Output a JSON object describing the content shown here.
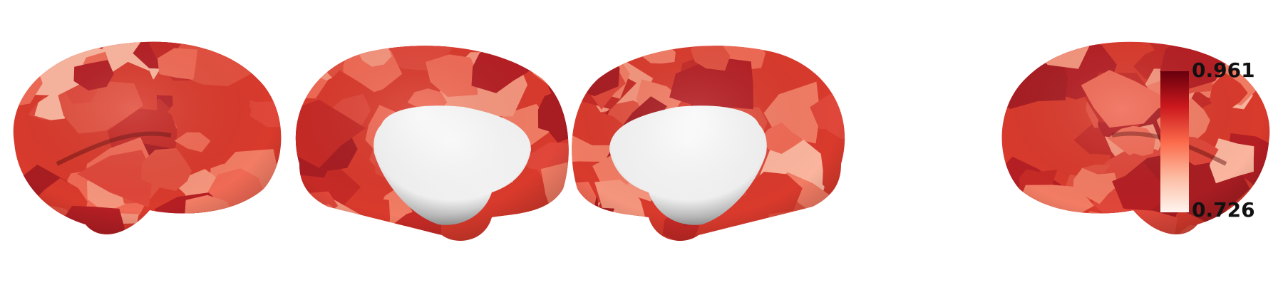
{
  "figure": {
    "views": [
      {
        "name": "left-lateral",
        "hemisphere": "left",
        "view": "lateral"
      },
      {
        "name": "left-medial",
        "hemisphere": "left",
        "view": "medial"
      },
      {
        "name": "right-medial",
        "hemisphere": "right",
        "view": "medial"
      },
      {
        "name": "right-lateral",
        "hemisphere": "right",
        "view": "lateral"
      }
    ],
    "colorbar": {
      "max_label": "0.961",
      "min_label": "0.726",
      "colormap": [
        "#fff5f0",
        "#fcbba1",
        "#fb6a4a",
        "#cb181d",
        "#67000d"
      ]
    },
    "palette": [
      "#d93a2c",
      "#e0473a",
      "#c62a26",
      "#f06a55",
      "#f5957d",
      "#b51f24",
      "#fbb59e",
      "#e2503f",
      "#a81d22",
      "#f27c64"
    ]
  }
}
